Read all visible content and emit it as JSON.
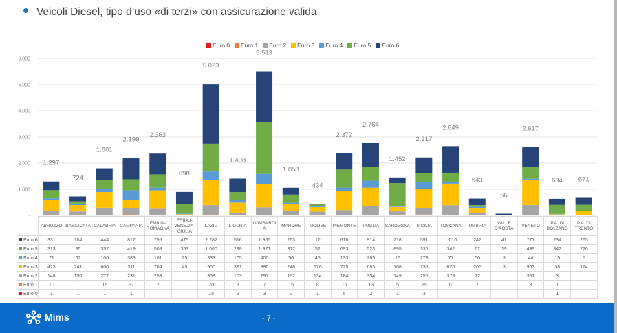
{
  "slide": {
    "title": "Veicoli Diesel, tipo d’uso «di terzi» con assicurazione valida.",
    "footer": {
      "logo_text": "Mims",
      "page_label": "- 7 -"
    }
  },
  "chart_data": {
    "type": "bar",
    "stacked": true,
    "title": "",
    "xlabel": "",
    "ylabel": "",
    "ylim": [
      0,
      6000
    ],
    "yticks": [
      0,
      1000,
      2000,
      3000,
      4000,
      5000,
      6000
    ],
    "ytick_labels": [
      "-",
      "1.000",
      "2.000",
      "3.000",
      "4.000",
      "5.000",
      "6.000"
    ],
    "grid": true,
    "legend_position": "top-center",
    "categories": [
      "ABRUZZO",
      "BASILICATA",
      "CALABRIA",
      "CAMPANIA",
      "EMILIA-ROMAGNA",
      "FRIULI-VENEZIA-GIULIA",
      "LAZIO",
      "LIGURIA",
      "LOMBARDIA",
      "MARCHE",
      "MOLISE",
      "PIEMONTE",
      "PUGLIA",
      "SARDEGNA",
      "SICILIA",
      "TOSCANA",
      "UMBRIA",
      "VALLE D'AOSTA",
      "VENETO",
      "P.A. DI BOLZANO",
      "P.A. DI TRENTO"
    ],
    "category_labels": [
      "ABRUZZO",
      "BASILICATA",
      "CALABRIA",
      "CAMPANIA",
      "EMILIA-ROMAGNA",
      "FRIULI-VENEZIA-GIULIA",
      "LAZIO",
      "LIGURIA",
      "LOMBARDI A",
      "MARCHE",
      "MOLISE",
      "PIEMONTE",
      "PUGLIA",
      "SARDEGNA",
      "SICILIA",
      "TOSCANA",
      "UMBRIA",
      "VALLE D'AOSTA",
      "VENETO",
      "P.A. DI BOLZANO",
      "P.A. DI TRENTO"
    ],
    "series": [
      {
        "name": "Euro 0",
        "color": "#e31a1c",
        "values": [
          1,
          1,
          1,
          1,
          null,
          null,
          15,
          2,
          3,
          2,
          1,
          5,
          2,
          1,
          3,
          null,
          null,
          null,
          null,
          1,
          null
        ]
      },
      {
        "name": "Euro 1",
        "color": "#ed7d31",
        "values": [
          10,
          1,
          16,
          37,
          2,
          null,
          20,
          3,
          7,
          15,
          8,
          16,
          13,
          5,
          29,
          10,
          7,
          null,
          3,
          1,
          null
        ]
      },
      {
        "name": "Euro 2",
        "color": "#a5a5a5",
        "values": [
          148,
          150,
          277,
          231,
          253,
          null,
          358,
          103,
          297,
          162,
          134,
          184,
          354,
          149,
          250,
          379,
          72,
          null,
          391,
          3,
          null
        ]
      },
      {
        "name": "Euro 3",
        "color": "#ffc000",
        "values": [
          423,
          241,
          600,
          311,
          704,
          45,
          950,
          381,
          880,
          248,
          176,
          725,
          693,
          168,
          735,
          825,
          205,
          3,
          963,
          38,
          174
        ]
      },
      {
        "name": "Euro 4",
        "color": "#5b9bd5",
        "values": [
          71,
          62,
          106,
          383,
          101,
          25,
          338,
          105,
          400,
          56,
          46,
          133,
          265,
          16,
          273,
          77,
          50,
          3,
          44,
          15,
          6
        ]
      },
      {
        "name": "Euro 5",
        "color": "#70ad47",
        "values": [
          313,
          85,
          357,
          419,
          508,
          353,
          1060,
          298,
          1971,
          312,
          52,
          693,
          523,
          895,
          336,
          342,
          62,
          19,
          439,
          342,
          226
        ]
      },
      {
        "name": "Euro 6",
        "color": "#264478",
        "values": [
          331,
          184,
          444,
          817,
          795,
          475,
          2282,
          516,
          1955,
          263,
          17,
          616,
          914,
          218,
          591,
          1016,
          247,
          41,
          777,
          234,
          265
        ]
      }
    ],
    "totals": [
      1297,
      724,
      1801,
      2199,
      2363,
      898,
      5023,
      1408,
      5513,
      1058,
      434,
      2372,
      2764,
      1452,
      2217,
      2649,
      643,
      66,
      2617,
      634,
      671
    ],
    "total_labels": [
      "1.297",
      "724",
      "1.801",
      "2.199",
      "2.363",
      "898",
      "5.023",
      "1.408",
      "5.513",
      "1.058",
      "434",
      "2.372",
      "2.764",
      "1.452",
      "2.217",
      "2.649",
      "643",
      "66",
      "2.617",
      "634",
      "671"
    ],
    "table": {
      "row_order": [
        "Euro 6",
        "Euro 5",
        "Euro 4",
        "Euro 3",
        "Euro 2",
        "Euro 1",
        "Euro 0"
      ],
      "rows": [
        [
          "331",
          "184",
          "444",
          "817",
          "795",
          "475",
          "2.282",
          "516",
          "1.955",
          "263",
          "17",
          "616",
          "914",
          "218",
          "591",
          "1.016",
          "247",
          "41",
          "777",
          "234",
          "265"
        ],
        [
          "313",
          "85",
          "357",
          "419",
          "508",
          "353",
          "1.060",
          "298",
          "1.971",
          "312",
          "52",
          "693",
          "523",
          "895",
          "336",
          "342",
          "62",
          "19",
          "439",
          "342",
          "226"
        ],
        [
          "71",
          "62",
          "106",
          "383",
          "101",
          "25",
          "338",
          "105",
          "400",
          "56",
          "46",
          "133",
          "265",
          "16",
          "273",
          "77",
          "50",
          "3",
          "44",
          "15",
          "6"
        ],
        [
          "423",
          "241",
          "600",
          "311",
          "704",
          "45",
          "950",
          "381",
          "880",
          "248",
          "176",
          "725",
          "693",
          "168",
          "735",
          "825",
          "205",
          "3",
          "963",
          "38",
          "174"
        ],
        [
          "148",
          "150",
          "277",
          "231",
          "253",
          "",
          "358",
          "103",
          "297",
          "162",
          "134",
          "184",
          "354",
          "149",
          "250",
          "379",
          "72",
          "",
          "391",
          "3",
          ""
        ],
        [
          "10",
          "1",
          "16",
          "37",
          "2",
          "",
          "20",
          "3",
          "7",
          "15",
          "8",
          "16",
          "13",
          "5",
          "29",
          "10",
          "7",
          "",
          "3",
          "1",
          ""
        ],
        [
          "1",
          "1",
          "1",
          "1",
          "",
          "",
          "15",
          "2",
          "3",
          "2",
          "1",
          "5",
          "2",
          "1",
          "3",
          "",
          "",
          "",
          "",
          "1",
          ""
        ]
      ]
    }
  }
}
